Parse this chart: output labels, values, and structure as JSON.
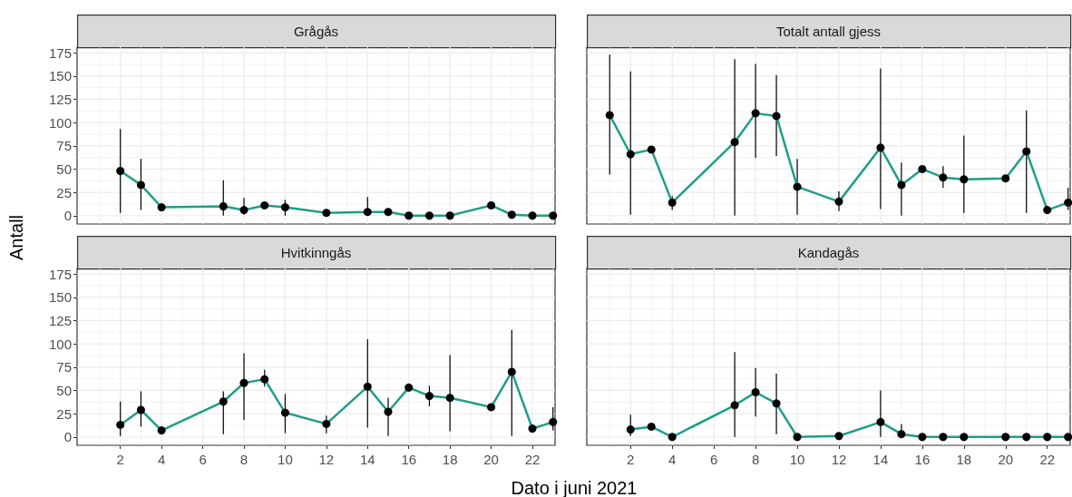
{
  "chart_data": [
    {
      "type": "line",
      "title": "Grågås",
      "ylabel": "Antall",
      "tick_labels": "y",
      "grid": true,
      "marker": "circle",
      "line_style": "solid",
      "color": "#1f9e89",
      "x": [
        2,
        3,
        4,
        7,
        8,
        9,
        10,
        12,
        14,
        15,
        16,
        17,
        18,
        20,
        21,
        22,
        23
      ],
      "values": [
        48,
        33,
        9,
        10,
        6,
        11,
        9,
        3,
        4,
        4,
        0,
        0,
        0,
        11,
        1,
        0,
        0
      ],
      "errors": [
        [
          3,
          93
        ],
        [
          6,
          61
        ],
        null,
        [
          0,
          38
        ],
        [
          1,
          19
        ],
        null,
        [
          0,
          17
        ],
        null,
        [
          0,
          20
        ],
        null,
        null,
        null,
        null,
        null,
        null,
        null,
        null
      ],
      "xlim": [
        -0.1,
        23.1
      ],
      "xticks": [
        2,
        4,
        6,
        8,
        10,
        12,
        14,
        16,
        18,
        20,
        22
      ],
      "ylim": [
        -9,
        181
      ],
      "yticks": [
        0,
        25,
        50,
        75,
        100,
        125,
        150,
        175
      ]
    },
    {
      "type": "line",
      "title": "Totalt antall gjess",
      "tick_labels": false,
      "grid": true,
      "marker": "circle",
      "line_style": "solid",
      "color": "#1f9e89",
      "x": [
        1,
        2,
        3,
        4,
        7,
        8,
        9,
        10,
        12,
        14,
        15,
        16,
        17,
        18,
        20,
        21,
        22,
        23
      ],
      "values": [
        108,
        66,
        71,
        14,
        79,
        110,
        107,
        31,
        15,
        73,
        33,
        50,
        41,
        39,
        40,
        69,
        6,
        14
      ],
      "errors": [
        [
          44,
          173
        ],
        [
          1,
          155
        ],
        null,
        [
          6,
          21
        ],
        [
          0,
          168
        ],
        [
          62,
          163
        ],
        [
          64,
          151
        ],
        [
          1,
          61
        ],
        [
          5,
          26
        ],
        [
          7,
          158
        ],
        [
          0,
          57
        ],
        null,
        [
          30,
          53
        ],
        [
          3,
          86
        ],
        null,
        [
          3,
          113
        ],
        null,
        [
          6,
          30
        ]
      ],
      "xlim": [
        -0.1,
        23.1
      ],
      "xticks": [
        2,
        4,
        6,
        8,
        10,
        12,
        14,
        16,
        18,
        20,
        22
      ],
      "ylim": [
        -9,
        181
      ],
      "yticks": [
        0,
        25,
        50,
        75,
        100,
        125,
        150,
        175
      ]
    },
    {
      "type": "line",
      "title": "Hvitkinngås",
      "xlabel": "Dato i juni 2021",
      "grid": true,
      "marker": "circle",
      "line_style": "solid",
      "color": "#1f9e89",
      "x": [
        2,
        3,
        4,
        7,
        8,
        9,
        10,
        12,
        14,
        15,
        16,
        17,
        18,
        20,
        21,
        22,
        23
      ],
      "values": [
        13,
        29,
        7,
        38,
        58,
        62,
        26,
        14,
        54,
        27,
        53,
        44,
        42,
        32,
        70,
        9,
        16
      ],
      "errors": [
        [
          1,
          38
        ],
        [
          11,
          49
        ],
        null,
        [
          3,
          49
        ],
        [
          18,
          90
        ],
        [
          54,
          72
        ],
        [
          4,
          46
        ],
        [
          4,
          23
        ],
        [
          10,
          105
        ],
        [
          1,
          42
        ],
        null,
        [
          33,
          55
        ],
        [
          6,
          88
        ],
        null,
        [
          1,
          115
        ],
        null,
        [
          7,
          32
        ]
      ],
      "xlim": [
        -0.1,
        23.1
      ],
      "xticks": [
        2,
        4,
        6,
        8,
        10,
        12,
        14,
        16,
        18,
        20,
        22
      ],
      "ylim": [
        -9,
        181
      ],
      "yticks": [
        0,
        25,
        50,
        75,
        100,
        125,
        150,
        175
      ]
    },
    {
      "type": "line",
      "title": "Kandagås",
      "tick_labels": "x",
      "grid": true,
      "marker": "circle",
      "line_style": "solid",
      "color": "#1f9e89",
      "x": [
        2,
        3,
        4,
        7,
        8,
        9,
        10,
        12,
        14,
        15,
        16,
        17,
        18,
        20,
        21,
        22,
        23
      ],
      "values": [
        8,
        11,
        0,
        34,
        48,
        36,
        0,
        1,
        16,
        3,
        0,
        0,
        0,
        0,
        0,
        0,
        0
      ],
      "errors": [
        [
          1,
          24
        ],
        null,
        null,
        [
          0,
          91
        ],
        [
          22,
          74
        ],
        [
          3,
          68
        ],
        null,
        null,
        [
          0,
          50
        ],
        [
          0,
          14
        ],
        null,
        null,
        null,
        null,
        null,
        null,
        null
      ],
      "xlim": [
        -0.1,
        23.1
      ],
      "xticks": [
        2,
        4,
        6,
        8,
        10,
        12,
        14,
        16,
        18,
        20,
        22
      ],
      "ylim": [
        -9,
        181
      ],
      "yticks": [
        0,
        25,
        50,
        75,
        100,
        125,
        150,
        175
      ]
    }
  ]
}
